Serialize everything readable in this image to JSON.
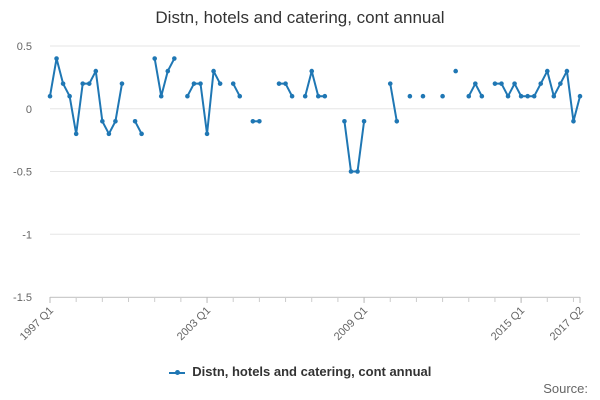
{
  "page": {
    "title": "Distn, hotels and catering, cont annual",
    "source": "Source:"
  },
  "colors": {
    "series": "#1f77b4",
    "grid": "#e6e6e6",
    "axis_text": "#666666"
  },
  "legend": {
    "label": "Distn, hotels and catering, cont annual"
  },
  "chart_data": {
    "type": "line",
    "title": "Distn, hotels and catering, cont annual",
    "xlabel": "",
    "ylabel": "",
    "ylim": [
      -1.5,
      0.5
    ],
    "yticks": [
      0.5,
      0,
      -0.5,
      -1,
      -1.5
    ],
    "ytick_labels": [
      "0.5",
      "0",
      "-0.5",
      "-1",
      "-1.5"
    ],
    "x_tick_labels": [
      "1997 Q1",
      "2003 Q1",
      "2009 Q1",
      "2015 Q1",
      "2017 Q2"
    ],
    "grid": true,
    "legend_position": "bottom",
    "categories": [
      "1997 Q1",
      "1997 Q2",
      "1997 Q3",
      "1997 Q4",
      "1998 Q1",
      "1998 Q2",
      "1998 Q3",
      "1998 Q4",
      "1999 Q1",
      "1999 Q2",
      "1999 Q3",
      "1999 Q4",
      "2000 Q1",
      "2000 Q2",
      "2000 Q3",
      "2000 Q4",
      "2001 Q1",
      "2001 Q2",
      "2001 Q3",
      "2001 Q4",
      "2002 Q1",
      "2002 Q2",
      "2002 Q3",
      "2002 Q4",
      "2003 Q1",
      "2003 Q2",
      "2003 Q3",
      "2003 Q4",
      "2004 Q1",
      "2004 Q2",
      "2004 Q3",
      "2004 Q4",
      "2005 Q1",
      "2005 Q2",
      "2005 Q3",
      "2005 Q4",
      "2006 Q1",
      "2006 Q2",
      "2006 Q3",
      "2006 Q4",
      "2007 Q1",
      "2007 Q2",
      "2007 Q3",
      "2007 Q4",
      "2008 Q1",
      "2008 Q2",
      "2008 Q3",
      "2008 Q4",
      "2009 Q1",
      "2009 Q2",
      "2009 Q3",
      "2009 Q4",
      "2010 Q1",
      "2010 Q2",
      "2010 Q3",
      "2010 Q4",
      "2011 Q1",
      "2011 Q2",
      "2011 Q3",
      "2011 Q4",
      "2012 Q1",
      "2012 Q2",
      "2012 Q3",
      "2012 Q4",
      "2013 Q1",
      "2013 Q2",
      "2013 Q3",
      "2013 Q4",
      "2014 Q1",
      "2014 Q2",
      "2014 Q3",
      "2014 Q4",
      "2015 Q1",
      "2015 Q2",
      "2015 Q3",
      "2015 Q4",
      "2016 Q1",
      "2016 Q2",
      "2016 Q3",
      "2016 Q4",
      "2017 Q1",
      "2017 Q2"
    ],
    "series": [
      {
        "name": "Distn, hotels and catering, cont annual",
        "values": [
          0.1,
          0.4,
          0.2,
          0.1,
          -0.2,
          0.2,
          0.2,
          0.3,
          -0.1,
          -0.2,
          -0.1,
          0.2,
          null,
          -0.1,
          -0.2,
          null,
          0.4,
          0.1,
          0.3,
          0.4,
          null,
          0.1,
          0.2,
          0.2,
          -0.2,
          0.3,
          0.2,
          null,
          0.2,
          0.1,
          null,
          -0.1,
          -0.1,
          null,
          null,
          0.2,
          0.2,
          0.1,
          null,
          0.1,
          0.3,
          0.1,
          0.1,
          null,
          null,
          -0.1,
          -0.5,
          -0.5,
          -0.1,
          null,
          null,
          null,
          0.2,
          -0.1,
          null,
          0.1,
          null,
          0.1,
          null,
          null,
          0.1,
          null,
          0.3,
          null,
          0.1,
          0.2,
          0.1,
          null,
          0.2,
          0.2,
          0.1,
          0.2,
          0.1,
          0.1,
          0.1,
          0.2,
          0.3,
          0.1,
          0.2,
          0.3,
          -0.1,
          0.1
        ]
      }
    ]
  }
}
